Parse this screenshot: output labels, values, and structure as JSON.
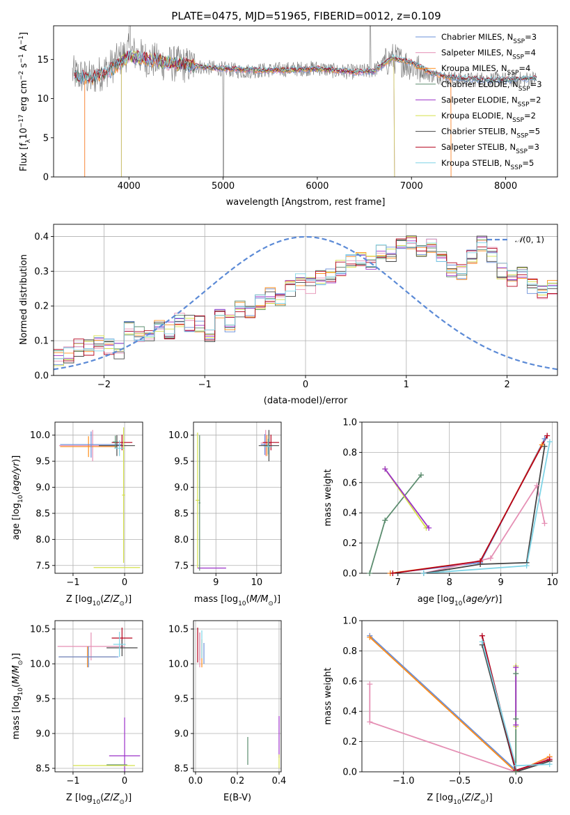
{
  "title": "PLATE=0475, MJD=51965, FIBERID=0012, z=0.109",
  "colors": {
    "Chabrier MILES": "#6a8fd8",
    "Salpeter MILES": "#e58fb4",
    "Kroupa MILES": "#ff8c1a",
    "Chabrier ELODIE": "#5b8c6e",
    "Salpeter ELODIE": "#9b30c8",
    "Kroupa ELODIE": "#d4e04a",
    "Chabrier STELIB": "#444444",
    "Salpeter STELIB": "#b3001b",
    "Kroupa STELIB": "#7fd4e6",
    "data": "#808080",
    "normal": "#5b8ad6"
  },
  "legend_main": [
    {
      "model": "Chabrier MILES",
      "text": "Chabrier MILES, N",
      "n": "=3"
    },
    {
      "model": "Salpeter MILES",
      "text": "Salpeter MILES, N",
      "n": "=4"
    },
    {
      "model": "Kroupa MILES",
      "text": "Kroupa MILES, N",
      "n": "=4"
    },
    {
      "model": "Chabrier ELODIE",
      "text": "Chabrier ELODIE, N",
      "n": "=3"
    },
    {
      "model": "Salpeter ELODIE",
      "text": "Salpeter ELODIE, N",
      "n": "=2"
    },
    {
      "model": "Kroupa ELODIE",
      "text": "Kroupa ELODIE, N",
      "n": "=2"
    },
    {
      "model": "Chabrier STELIB",
      "text": "Chabrier STELIB, N",
      "n": "=5"
    },
    {
      "model": "Salpeter STELIB",
      "text": "Salpeter STELIB, N",
      "n": "=3"
    },
    {
      "model": "Kroupa STELIB",
      "text": "Kroupa STELIB, N",
      "n": "=5"
    }
  ],
  "chart_data": [
    {
      "id": "spectrum",
      "type": "line",
      "xlabel": "wavelength [Angstrom, rest frame]",
      "ylabel": "Flux [f",
      "xlim": [
        3200,
        8550
      ],
      "ylim": [
        0,
        19.3
      ],
      "xticks": [
        4000,
        5000,
        6000,
        7000,
        8000
      ],
      "yticks": [
        0,
        5,
        10,
        15
      ],
      "data_anchors": {
        "x": [
          3400,
          3600,
          3800,
          4000,
          4200,
          4400,
          4600,
          4800,
          5000,
          5200,
          5400,
          5600,
          5800,
          6000,
          6200,
          6400,
          6600,
          6800,
          7000,
          7200,
          7400,
          7600,
          7800,
          8000,
          8200,
          8330
        ],
        "y": [
          13.2,
          12.5,
          14.0,
          16.0,
          15.0,
          14.5,
          14.3,
          14.0,
          13.8,
          13.5,
          13.6,
          13.7,
          13.8,
          13.9,
          13.5,
          13.4,
          13.6,
          15.2,
          14.2,
          13.0,
          12.6,
          12.4,
          12.5,
          12.4,
          12.5,
          12.6
        ]
      },
      "model_anchors": {
        "x": [
          3400,
          3600,
          3800,
          4000,
          4200,
          4400,
          4600,
          4800,
          5000,
          5200,
          5400,
          5600,
          5800,
          6000,
          6200,
          6400,
          6600,
          6800,
          7000,
          7200,
          7400,
          7600,
          7800,
          8000,
          8200,
          8330
        ],
        "y": [
          12.9,
          12.6,
          13.6,
          15.4,
          15.0,
          14.6,
          14.3,
          14.0,
          13.8,
          13.7,
          13.6,
          13.6,
          13.7,
          13.8,
          13.6,
          13.4,
          13.5,
          15.2,
          14.6,
          13.3,
          12.7,
          12.5,
          12.4,
          12.4,
          12.5,
          12.6
        ]
      },
      "model_start": {
        "Kroupa MILES": 3530,
        "Salpeter MILES": 3530,
        "Kroupa ELODIE": 3920,
        "Salpeter ELODIE": 3920
      },
      "model_end": {
        "Kroupa MILES": 7420,
        "Salpeter MILES": 7420,
        "Kroupa ELODIE": 6820,
        "Salpeter ELODIE": 6820
      }
    },
    {
      "id": "residual_histogram",
      "type": "step-histogram",
      "xlabel": "(data-model)/error",
      "ylabel": "Normed distribution",
      "xlim": [
        -2.5,
        2.5
      ],
      "ylim": [
        0,
        0.435
      ],
      "xticks": [
        -2,
        -1,
        0,
        1,
        2
      ],
      "yticks": [
        0.0,
        0.1,
        0.2,
        0.3,
        0.4
      ],
      "bin_width": 0.1,
      "bin_start": -2.5,
      "base_values": [
        0.05,
        0.06,
        0.08,
        0.08,
        0.09,
        0.08,
        0.07,
        0.14,
        0.12,
        0.11,
        0.14,
        0.13,
        0.16,
        0.15,
        0.15,
        0.12,
        0.17,
        0.15,
        0.19,
        0.18,
        0.21,
        0.23,
        0.22,
        0.25,
        0.27,
        0.26,
        0.28,
        0.29,
        0.31,
        0.33,
        0.34,
        0.33,
        0.36,
        0.35,
        0.37,
        0.38,
        0.35,
        0.37,
        0.35,
        0.3,
        0.3,
        0.34,
        0.38,
        0.35,
        0.3,
        0.28,
        0.3,
        0.26,
        0.24,
        0.25,
        0.22,
        0.21,
        0.18,
        0.18,
        0.18,
        0.16,
        0.15,
        0.14,
        0.13,
        0.12,
        0.11,
        0.11,
        0.1,
        0.09,
        0.09,
        0.07,
        0.07,
        0.06,
        0.06,
        0.05,
        0.04,
        0.05,
        0.05,
        0.04,
        0.04,
        0.03,
        0.03,
        0.04,
        0.03,
        0.03
      ],
      "normal_curve": {
        "label": "(0, 1)",
        "mu": 0,
        "sigma": 1
      }
    },
    {
      "id": "age_vs_Z",
      "type": "errorbar",
      "xlabel": "Z [log",
      "ylabel": "age  [log",
      "xlim": [
        -1.35,
        0.35
      ],
      "ylim": [
        7.35,
        10.25
      ],
      "xticks": [
        -1,
        0
      ],
      "yticks": [
        7.5,
        8.0,
        8.5,
        9.0,
        9.5,
        10.0
      ],
      "points": [
        {
          "model": "Salpeter MILES",
          "x": -0.62,
          "y": 9.8,
          "xerr": 0.65,
          "yerr": 0.3
        },
        {
          "model": "Kroupa MILES",
          "x": -0.7,
          "y": 9.78,
          "xerr": 0.55,
          "yerr": 0.2
        },
        {
          "model": "Chabrier MILES",
          "x": -0.65,
          "y": 9.82,
          "xerr": 0.6,
          "yerr": 0.25
        },
        {
          "model": "Chabrier STELIB",
          "x": -0.15,
          "y": 9.8,
          "xerr": 0.35,
          "yerr": 0.2
        },
        {
          "model": "Salpeter STELIB",
          "x": -0.05,
          "y": 9.86,
          "xerr": 0.2,
          "yerr": 0.15
        },
        {
          "model": "Chabrier ELODIE",
          "x": -0.18,
          "y": 9.87,
          "xerr": 0.05,
          "yerr": 0.12
        },
        {
          "model": "Kroupa STELIB",
          "x": -0.1,
          "y": 9.75,
          "xerr": 0.1,
          "yerr": 0.15
        },
        {
          "model": "Kroupa ELODIE",
          "x": -0.02,
          "y": 8.85,
          "xerr": 0.03,
          "yerr": 1.3
        },
        {
          "model": "Kroupa ELODIE",
          "x": -0.15,
          "y": 7.46,
          "xerr": 0.45,
          "yerr": 0.0
        }
      ]
    },
    {
      "id": "age_vs_mass",
      "type": "errorbar",
      "xlabel": "mass [log",
      "ylabel": "",
      "xlim": [
        8.45,
        10.6
      ],
      "ylim": [
        7.35,
        10.25
      ],
      "xticks": [
        9,
        10
      ],
      "yticks": [
        7.5,
        8.0,
        8.5,
        9.0,
        9.5,
        10.0
      ],
      "points": [
        {
          "model": "Chabrier MILES",
          "x": 10.2,
          "y": 9.82,
          "xerr": 0.1,
          "yerr": 0.2
        },
        {
          "model": "Salpeter MILES",
          "x": 10.22,
          "y": 9.85,
          "xerr": 0.12,
          "yerr": 0.25
        },
        {
          "model": "Kroupa MILES",
          "x": 10.25,
          "y": 9.8,
          "xerr": 0.08,
          "yerr": 0.2
        },
        {
          "model": "Chabrier STELIB",
          "x": 10.3,
          "y": 9.8,
          "xerr": 0.25,
          "yerr": 0.3
        },
        {
          "model": "Salpeter STELIB",
          "x": 10.35,
          "y": 9.86,
          "xerr": 0.2,
          "yerr": 0.15
        },
        {
          "model": "Kroupa STELIB",
          "x": 10.28,
          "y": 9.78,
          "xerr": 0.1,
          "yerr": 0.15
        },
        {
          "model": "Kroupa ELODIE",
          "x": 8.55,
          "y": 8.75,
          "xerr": 0.05,
          "yerr": 1.3
        },
        {
          "model": "Salpeter ELODIE",
          "x": 8.9,
          "y": 7.45,
          "xerr": 0.35,
          "yerr": 0.0
        },
        {
          "model": "Chabrier ELODIE",
          "x": 8.6,
          "y": 8.7,
          "xerr": 0.02,
          "yerr": 1.3
        }
      ]
    },
    {
      "id": "mass_weight_vs_age",
      "type": "line",
      "xlabel": "age  [log",
      "ylabel": "mass weight",
      "xlim": [
        6.3,
        10.1
      ],
      "ylim": [
        0.0,
        1.0
      ],
      "xticks": [
        7,
        8,
        9,
        10
      ],
      "yticks": [
        0.0,
        0.2,
        0.4,
        0.6,
        0.8,
        1.0
      ],
      "series": [
        {
          "model": "Chabrier ELODIE",
          "x": [
            6.45,
            6.75,
            7.45
          ],
          "y": [
            0.0,
            0.35,
            0.65
          ]
        },
        {
          "model": "Kroupa ELODIE",
          "x": [
            6.75,
            7.55
          ],
          "y": [
            0.69,
            0.3
          ]
        },
        {
          "model": "Salpeter ELODIE",
          "x": [
            6.75,
            7.6
          ],
          "y": [
            0.69,
            0.3
          ]
        },
        {
          "model": "Chabrier MILES",
          "x": [
            6.85,
            8.6,
            9.85
          ],
          "y": [
            0.0,
            0.07,
            0.89
          ]
        },
        {
          "model": "Kroupa MILES",
          "x": [
            6.85,
            8.6,
            9.8
          ],
          "y": [
            0.0,
            0.08,
            0.85
          ]
        },
        {
          "model": "Salpeter MILES",
          "x": [
            7.5,
            8.8,
            9.7,
            9.85
          ],
          "y": [
            0.0,
            0.1,
            0.58,
            0.33
          ]
        },
        {
          "model": "Chabrier STELIB",
          "x": [
            7.5,
            8.6,
            9.5,
            9.85
          ],
          "y": [
            0.0,
            0.06,
            0.07,
            0.84
          ]
        },
        {
          "model": "Salpeter STELIB",
          "x": [
            6.9,
            8.6,
            9.9
          ],
          "y": [
            0.0,
            0.08,
            0.91
          ]
        },
        {
          "model": "Kroupa STELIB",
          "x": [
            7.5,
            9.5,
            9.95
          ],
          "y": [
            0.0,
            0.05,
            0.87
          ]
        }
      ]
    },
    {
      "id": "mass_vs_Z",
      "type": "errorbar",
      "xlabel": "Z [log",
      "ylabel": "mass [log",
      "xlim": [
        -1.35,
        0.35
      ],
      "ylim": [
        8.45,
        10.62
      ],
      "xticks": [
        -1,
        0
      ],
      "yticks": [
        8.5,
        9.0,
        9.5,
        10.0,
        10.5
      ],
      "points": [
        {
          "model": "Salpeter MILES",
          "x": -0.65,
          "y": 10.25,
          "xerr": 0.65,
          "yerr": 0.2
        },
        {
          "model": "Kroupa MILES",
          "x": -0.72,
          "y": 10.1,
          "xerr": 0.55,
          "yerr": 0.15
        },
        {
          "model": "Chabrier MILES",
          "x": -0.7,
          "y": 10.1,
          "xerr": 0.58,
          "yerr": 0.15
        },
        {
          "model": "Salpeter STELIB",
          "x": -0.05,
          "y": 10.37,
          "xerr": 0.2,
          "yerr": 0.15
        },
        {
          "model": "Chabrier STELIB",
          "x": -0.05,
          "y": 10.23,
          "xerr": 0.3,
          "yerr": 0.12
        },
        {
          "model": "Kroupa STELIB",
          "x": -0.1,
          "y": 10.28,
          "xerr": 0.12,
          "yerr": 0.18
        },
        {
          "model": "Salpeter ELODIE",
          "x": 0.0,
          "y": 8.68,
          "xerr": 0.3,
          "yerr": 0.55
        },
        {
          "model": "Chabrier ELODIE",
          "x": -0.15,
          "y": 8.55,
          "xerr": 0.2,
          "yerr": 0.0
        },
        {
          "model": "Kroupa ELODIE",
          "x": -0.4,
          "y": 8.54,
          "xerr": 0.6,
          "yerr": 0.0
        }
      ]
    },
    {
      "id": "mass_vs_EBV",
      "type": "errorbar",
      "xlabel": "E(B-V)",
      "ylabel": "",
      "xlim": [
        -0.01,
        0.41
      ],
      "ylim": [
        8.45,
        10.62
      ],
      "xticks": [
        0.0,
        0.2,
        0.4
      ],
      "yticks": [
        8.5,
        9.0,
        9.5,
        10.0,
        10.5
      ],
      "points": [
        {
          "model": "Salpeter STELIB",
          "x": 0.01,
          "y": 10.27,
          "xerr": 0.0,
          "yerr": 0.25
        },
        {
          "model": "Chabrier STELIB",
          "x": 0.02,
          "y": 10.25,
          "xerr": 0.0,
          "yerr": 0.2
        },
        {
          "model": "Salpeter MILES",
          "x": 0.02,
          "y": 10.2,
          "xerr": 0.0,
          "yerr": 0.25
        },
        {
          "model": "Kroupa MILES",
          "x": 0.03,
          "y": 10.15,
          "xerr": 0.0,
          "yerr": 0.2
        },
        {
          "model": "Kroupa STELIB",
          "x": 0.03,
          "y": 10.28,
          "xerr": 0.0,
          "yerr": 0.2
        },
        {
          "model": "Chabrier MILES",
          "x": 0.04,
          "y": 10.15,
          "xerr": 0.0,
          "yerr": 0.15
        },
        {
          "model": "Chabrier ELODIE",
          "x": 0.25,
          "y": 8.75,
          "xerr": 0.0,
          "yerr": 0.2
        },
        {
          "model": "Salpeter ELODIE",
          "x": 0.4,
          "y": 8.95,
          "xerr": 0.0,
          "yerr": 0.3
        },
        {
          "model": "Kroupa ELODIE",
          "x": 0.4,
          "y": 8.6,
          "xerr": 0.0,
          "yerr": 0.1
        }
      ]
    },
    {
      "id": "mass_weight_vs_Z",
      "type": "line",
      "xlabel": "Z [log",
      "ylabel": "mass weight",
      "xlim": [
        -1.37,
        0.37
      ],
      "ylim": [
        0.0,
        1.0
      ],
      "xticks": [
        -1.0,
        -0.5,
        0.0
      ],
      "yticks": [
        0.0,
        0.2,
        0.4,
        0.6,
        0.8,
        1.0
      ],
      "series": [
        {
          "model": "Chabrier MILES",
          "x": [
            -1.3,
            0.0,
            0.3
          ],
          "y": [
            0.9,
            0.01,
            0.08
          ]
        },
        {
          "model": "Kroupa MILES",
          "x": [
            -1.3,
            0.0,
            0.3
          ],
          "y": [
            0.89,
            0.0,
            0.1
          ]
        },
        {
          "model": "Salpeter MILES",
          "x": [
            -1.3,
            -1.3,
            0.0,
            0.3
          ],
          "y": [
            0.58,
            0.33,
            0.0,
            0.09
          ]
        },
        {
          "model": "Chabrier STELIB",
          "x": [
            -0.3,
            0.0,
            0.3
          ],
          "y": [
            0.84,
            0.0,
            0.07
          ]
        },
        {
          "model": "Salpeter STELIB",
          "x": [
            -0.3,
            0.0,
            0.3
          ],
          "y": [
            0.9,
            0.01,
            0.08
          ]
        },
        {
          "model": "Kroupa STELIB",
          "x": [
            -0.3,
            0.0,
            0.3
          ],
          "y": [
            0.86,
            0.04,
            0.05
          ]
        },
        {
          "model": "Chabrier ELODIE",
          "x": [
            0.0,
            0.0,
            0.0
          ],
          "y": [
            0.65,
            0.35,
            0.0
          ]
        },
        {
          "model": "Kroupa ELODIE",
          "x": [
            0.0,
            0.0
          ],
          "y": [
            0.7,
            0.3
          ]
        },
        {
          "model": "Salpeter ELODIE",
          "x": [
            0.0,
            0.0
          ],
          "y": [
            0.69,
            0.31
          ]
        }
      ]
    }
  ]
}
